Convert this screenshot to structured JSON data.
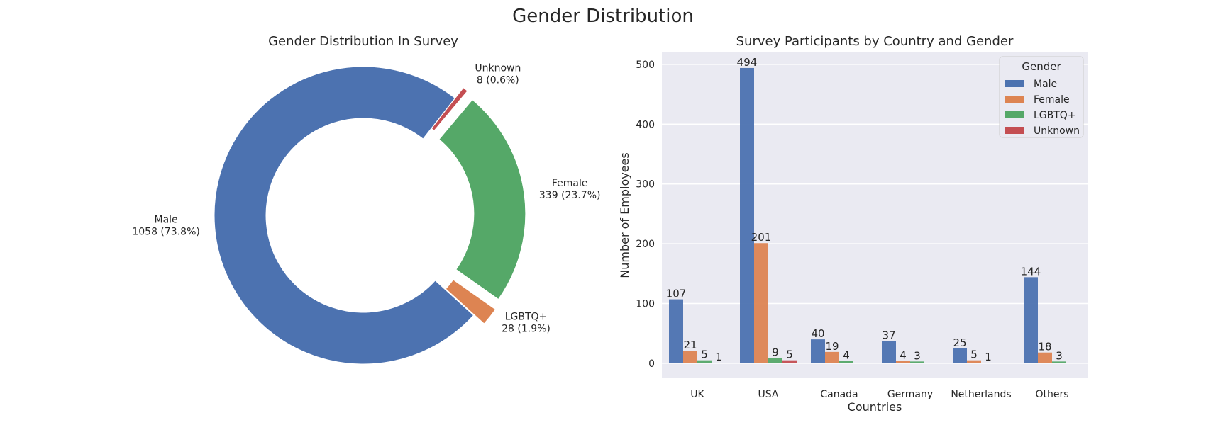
{
  "figure": {
    "title": "Gender Distribution"
  },
  "chart_data": [
    {
      "type": "pie",
      "variant": "donut",
      "title": "Gender Distribution In Survey",
      "slices": [
        {
          "label": "Male",
          "value": 1058,
          "pct": "73.8%",
          "color": "#4c72b0"
        },
        {
          "label": "LGBTQ+",
          "value": 28,
          "pct": "1.9%",
          "color": "#dd8452"
        },
        {
          "label": "Female",
          "value": 339,
          "pct": "23.7%",
          "color": "#55a868"
        },
        {
          "label": "Unknown",
          "value": 8,
          "pct": "0.6%",
          "color": "#c44e52"
        }
      ]
    },
    {
      "type": "bar",
      "title": "Survey Participants by Country and Gender",
      "xlabel": "Countries",
      "ylabel": "Number of Employees",
      "ylim": [
        -25,
        520
      ],
      "yticks": [
        0,
        100,
        200,
        300,
        400,
        500
      ],
      "grid": true,
      "legend": {
        "title": "Gender",
        "position": "top-right"
      },
      "categories": [
        "UK",
        "USA",
        "Canada",
        "Germany",
        "Netherlands",
        "Others"
      ],
      "series": [
        {
          "name": "Male",
          "color": "#4c72b0",
          "values": [
            107,
            494,
            40,
            37,
            25,
            144
          ]
        },
        {
          "name": "Female",
          "color": "#dd8452",
          "values": [
            21,
            201,
            19,
            4,
            5,
            18
          ]
        },
        {
          "name": "LGBTQ+",
          "color": "#55a868",
          "values": [
            5,
            9,
            4,
            3,
            1,
            3
          ]
        },
        {
          "name": "Unknown",
          "color": "#c44e52",
          "values": [
            1,
            5,
            null,
            null,
            null,
            null
          ]
        }
      ]
    }
  ]
}
